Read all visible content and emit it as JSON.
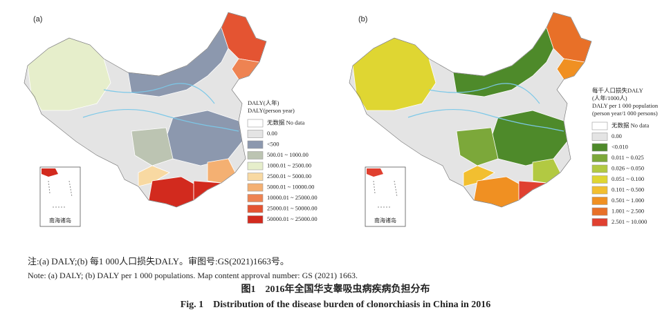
{
  "panels": [
    {
      "label": "(a)",
      "inset_label": "南海诸岛",
      "legend": {
        "title": [
          "DALY(人年)",
          "DALY(person year)"
        ],
        "items": [
          {
            "label": "无数据  No data",
            "color": "#ffffff"
          },
          {
            "label": "0.00",
            "color": "#e4e4e4"
          },
          {
            "label": "<500",
            "color": "#8c98ae"
          },
          {
            "label": "500.01  ~ 1000.00",
            "color": "#bcc4b2"
          },
          {
            "label": "1000.01 ~ 2500.00",
            "color": "#e6eecb"
          },
          {
            "label": "2500.01 ~ 5000.00",
            "color": "#f8d9a2"
          },
          {
            "label": "5000.01 ~ 10000.00",
            "color": "#f4b072"
          },
          {
            "label": "10000.01 ~ 25000.00",
            "color": "#ee8352"
          },
          {
            "label": "25000.01 ~ 50000.00",
            "color": "#e45432"
          },
          {
            "label": "50000.01 ~ 25000.00",
            "color": "#d22a1e"
          }
        ]
      }
    },
    {
      "label": "(b)",
      "inset_label": "南海诸岛",
      "legend": {
        "title": [
          "每千人口损失DALY",
          "(人年/1000人)",
          "DALY per 1 000 population",
          "(person year/1 000 persons)"
        ],
        "items": [
          {
            "label": "无数据  No data",
            "color": "#ffffff"
          },
          {
            "label": "0.00",
            "color": "#e4e4e4"
          },
          {
            "label": "<0.010",
            "color": "#4e8a2a"
          },
          {
            "label": "0.011 ~ 0.025",
            "color": "#7ca83a"
          },
          {
            "label": "0.026 ~ 0.050",
            "color": "#b2c942"
          },
          {
            "label": "0.051 ~ 0.100",
            "color": "#dfd632"
          },
          {
            "label": "0.101 ~ 0.500",
            "color": "#f2bf30"
          },
          {
            "label": "0.501 ~ 1.000",
            "color": "#f09022"
          },
          {
            "label": "1.001 ~ 2.500",
            "color": "#e87028"
          },
          {
            "label": "2.501 ~ 10.000",
            "color": "#e04030"
          }
        ]
      }
    }
  ],
  "notes": [
    "注:(a) DALY;(b) 每1 000人口损失DALY。审图号:GS(2021)1663号。",
    "Note: (a) DALY; (b) DALY per 1 000 populations. Map content approval number: GS (2021) 1663."
  ],
  "caption": {
    "cn": "图1　2016年全国华支睾吸虫病疾病负担分布",
    "en": "Fig. 1　Distribution of the disease burden of clonorchiasis in China in 2016"
  }
}
